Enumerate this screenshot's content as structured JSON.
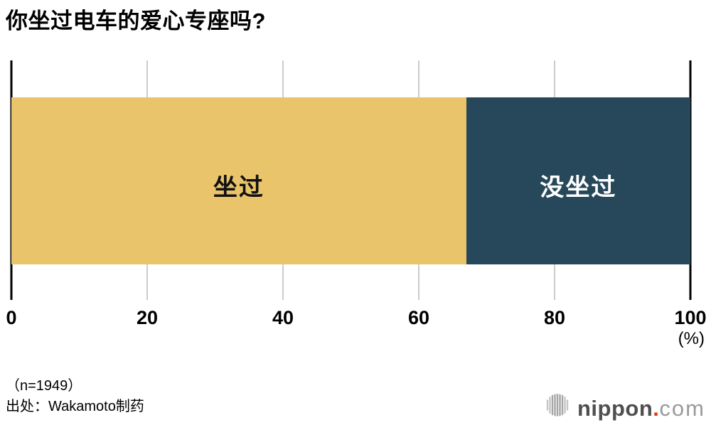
{
  "title": "你坐过电车的爱心专座吗?",
  "chart_data": {
    "type": "bar",
    "variant": "horizontal-stacked",
    "title": "你坐过电车的爱心专座吗?",
    "series": [
      {
        "name": "坐过",
        "value": 67,
        "color": "#e9c46a",
        "label_color": "#111111"
      },
      {
        "name": "没坐过",
        "value": 33,
        "color": "#27485a",
        "label_color": "#ffffff"
      }
    ],
    "xlim": [
      0,
      100
    ],
    "ticks": [
      0,
      20,
      40,
      60,
      80,
      100
    ],
    "unit_label": "(%)",
    "grid": true,
    "legend": "labels drawn inside segments",
    "sample_size_note": "（n=1949）",
    "source_note": "出处：Wakamoto制药"
  },
  "footer": {
    "sample_size": "（n=1949）",
    "source": "出处：Wakamoto制药"
  },
  "logo": {
    "icon": "soundwave-bars-icon",
    "text_main": "nippon",
    "text_dot": ".",
    "text_suffix": "com",
    "color_icon": "#a6a6a6",
    "color_main": "#4f4f4f",
    "color_dot": "#e8340c",
    "color_suffix": "#9a9a9a"
  },
  "colors": {
    "background": "#ffffff",
    "axis_line": "#000000",
    "gridline": "#cccccc",
    "title_text": "#000000"
  }
}
